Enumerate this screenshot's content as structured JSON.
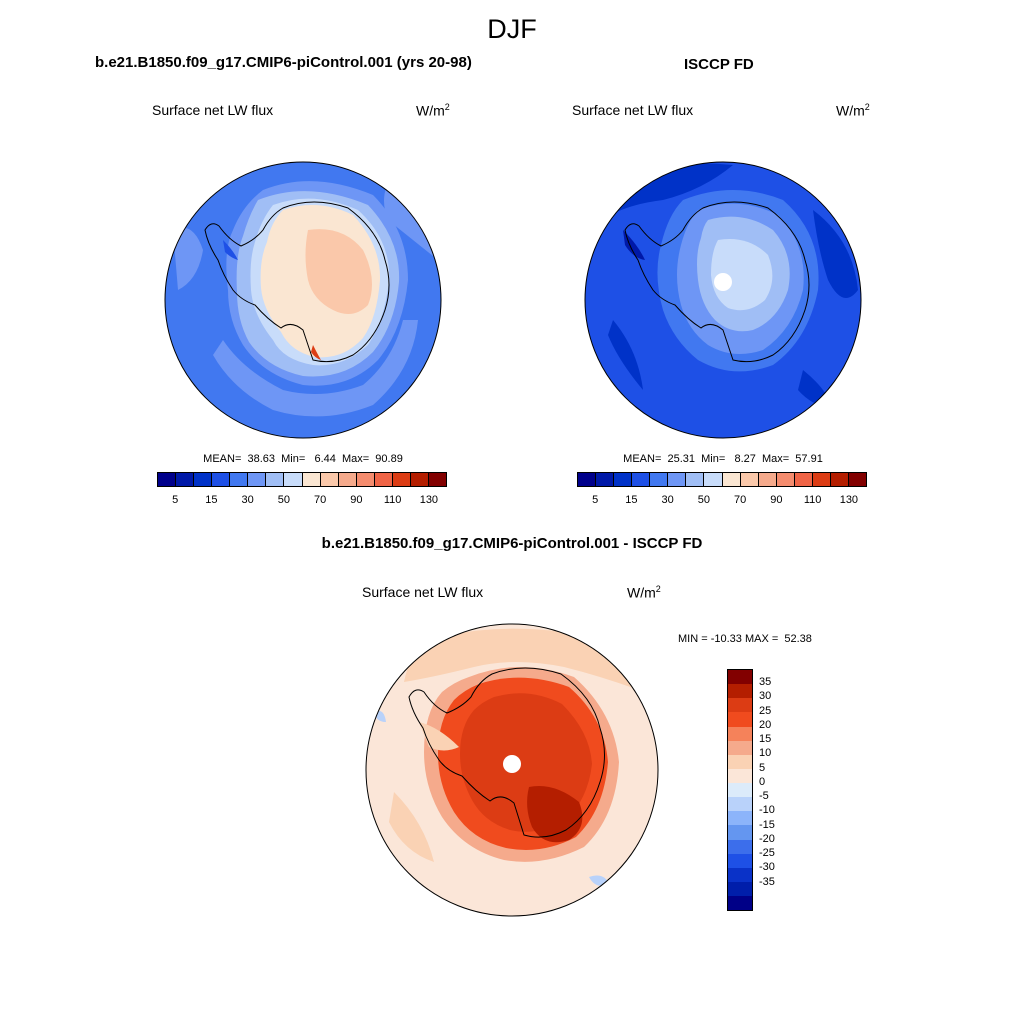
{
  "main_title": "DJF",
  "panels": [
    {
      "title": "b.e21.B1850.f09_g17.CMIP6-piControl.001 (yrs 20-98)",
      "variable": "Surface net LW flux",
      "units_base": "W/m",
      "units_exp": "2",
      "stats": "MEAN=  38.63  Min=   6.44  Max=  90.89"
    },
    {
      "title": "ISCCP FD",
      "variable": "Surface net LW flux",
      "units_base": "W/m",
      "units_exp": "2",
      "stats": "MEAN=  25.31  Min=   8.27  Max=  57.91"
    },
    {
      "title": "b.e21.B1850.f09_g17.CMIP6-piControl.001 - ISCCP FD",
      "variable": "Surface net LW flux",
      "units_base": "W/m",
      "units_exp": "2",
      "stats": "MIN = -10.33 MAX =  52.38"
    }
  ],
  "abs_colorbar": {
    "colors": [
      "#00008b",
      "#0019a8",
      "#0032c8",
      "#1e50e6",
      "#4178f0",
      "#6e96f5",
      "#a0bef5",
      "#c8dcfa",
      "#fae6d2",
      "#fac8aa",
      "#f5aa8c",
      "#f58c6e",
      "#f06446",
      "#dc3c14",
      "#b41e00",
      "#820000"
    ],
    "tick_labels": [
      "5",
      "15",
      "30",
      "50",
      "70",
      "90",
      "110",
      "130"
    ]
  },
  "diff_colorbar": {
    "colors": [
      "#820000",
      "#b41e00",
      "#dc3c14",
      "#f04b1e",
      "#f5825a",
      "#f5aa8c",
      "#fad2b4",
      "#fbe6d8",
      "#dcebfa",
      "#b9d2fa",
      "#8cb4fa",
      "#6496f0",
      "#3c6eeb",
      "#1e50e6",
      "#0a32c8",
      "#001eaa",
      "#000087"
    ],
    "tick_labels": [
      "35",
      "30",
      "25",
      "20",
      "15",
      "10",
      "5",
      "0",
      "-5",
      "-10",
      "-15",
      "-20",
      "-25",
      "-30",
      "-35"
    ]
  }
}
